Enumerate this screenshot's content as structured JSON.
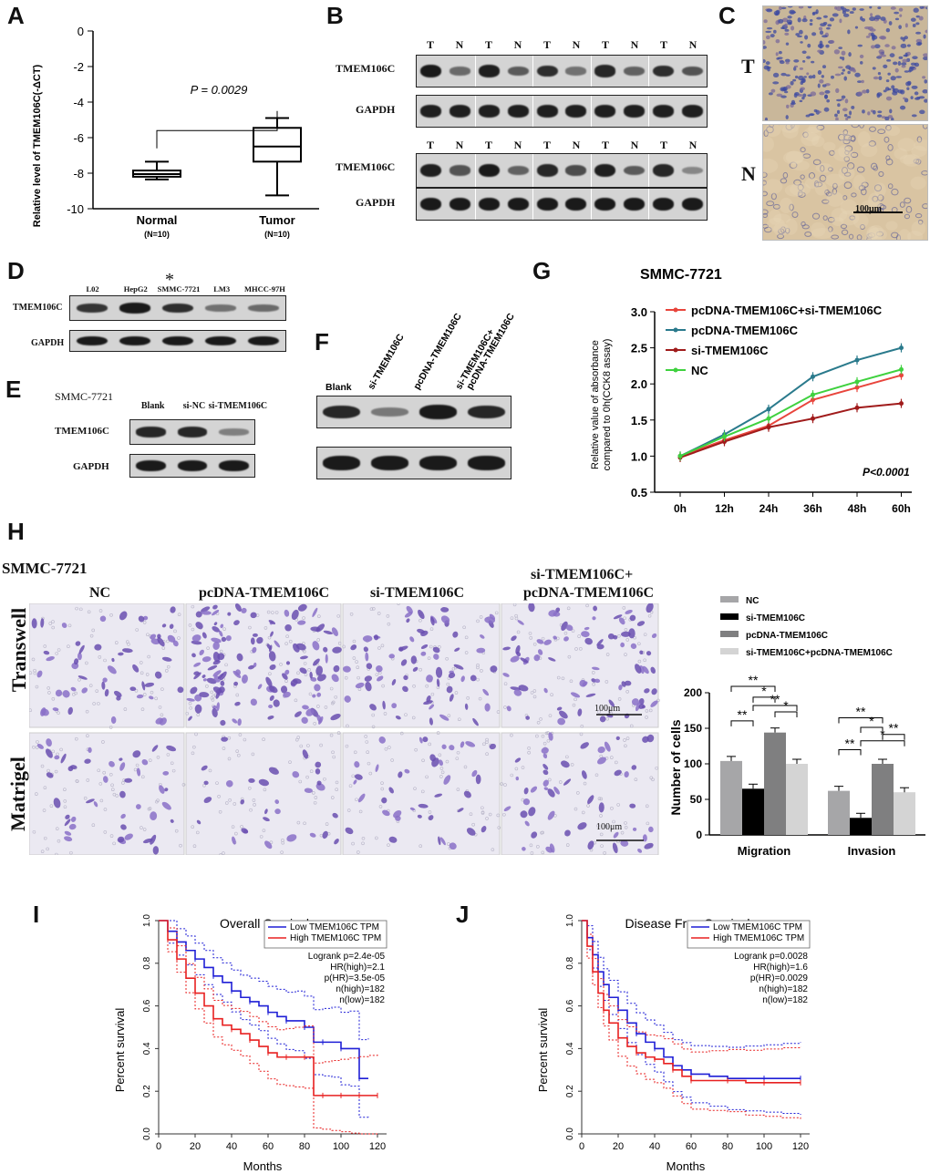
{
  "panels": {
    "A": "A",
    "B": "B",
    "C": "C",
    "D": "D",
    "E": "E",
    "F": "F",
    "G": "G",
    "H": "H",
    "I": "I",
    "J": "J"
  },
  "panelA": {
    "chart_data": {
      "type": "boxplot",
      "ylabel": "Relative level of TMEM106C(-ΔCT)",
      "ylim": [
        -10,
        0
      ],
      "yticks": [
        "0",
        "-2",
        "-4",
        "-6",
        "-8",
        "-10"
      ],
      "annotation": "P = 0.0029",
      "groups": [
        {
          "name": "Normal",
          "n": "(N=10)",
          "min": -8.35,
          "q1": -8.2,
          "median": -8.05,
          "q3": -7.85,
          "max": -7.35
        },
        {
          "name": "Tumor",
          "n": "(N=10)",
          "min": -9.25,
          "q1": -7.35,
          "median": -6.5,
          "q3": -5.45,
          "max": -4.9
        }
      ]
    }
  },
  "panelB": {
    "lanes": [
      "T",
      "N",
      "T",
      "N",
      "T",
      "N",
      "T",
      "N",
      "T",
      "N"
    ],
    "row1": "TMEM106C",
    "row2": "GAPDH",
    "row3": "TMEM106C",
    "row4": "GAPDH"
  },
  "panelC": {
    "t_label": "T",
    "n_label": "N",
    "scale": "100μm"
  },
  "panelD": {
    "lanes": [
      "L02",
      "HepG2",
      "SMMC-7721",
      "LM3",
      "MHCC-97H"
    ],
    "star": "*",
    "row1": "TMEM106C",
    "row2": "GAPDH"
  },
  "panelE": {
    "cell": "SMMC-7721",
    "lanes": [
      "Blank",
      "si-NC",
      "si-TMEM106C"
    ],
    "row1": "TMEM106C",
    "row2": "GAPDH"
  },
  "panelF": {
    "lanes": [
      "Blank",
      "si-TMEM106C",
      "pcDNA-TMEM106C",
      "si-TMEM106C+",
      "pcDNA-TMEM106C"
    ]
  },
  "panelG": {
    "chart_data": {
      "type": "line",
      "title": "SMMC-7721",
      "ylabel1": "Relative value of absorbance",
      "ylabel2": "compared to 0h(CCK8 assay)",
      "x": [
        "0h",
        "12h",
        "24h",
        "36h",
        "48h",
        "60h"
      ],
      "ylim": [
        0.5,
        3.0
      ],
      "yticks": [
        "0.5",
        "1.0",
        "1.5",
        "2.0",
        "2.5",
        "3.0"
      ],
      "pvalue": "P<0.0001",
      "series": [
        {
          "name": "pcDNA-TMEM106C+si-TMEM106C",
          "color": "#e8453c",
          "values": [
            1.0,
            1.22,
            1.42,
            1.78,
            1.95,
            2.12
          ]
        },
        {
          "name": "pcDNA-TMEM106C",
          "color": "#2a7a8c",
          "values": [
            1.0,
            1.3,
            1.65,
            2.1,
            2.33,
            2.5
          ]
        },
        {
          "name": "si-TMEM106C",
          "color": "#a01b1b",
          "values": [
            0.98,
            1.2,
            1.4,
            1.52,
            1.67,
            1.73
          ]
        },
        {
          "name": "NC",
          "color": "#3fd13f",
          "values": [
            1.0,
            1.27,
            1.52,
            1.85,
            2.03,
            2.2
          ]
        }
      ]
    }
  },
  "panelH": {
    "cell": "SMMC-7721",
    "cols": [
      "NC",
      "pcDNA-TMEM106C",
      "si-TMEM106C",
      "si-TMEM106C+",
      "pcDNA-TMEM106C"
    ],
    "rows": [
      "Transwell",
      "Matrigel"
    ],
    "scale": "100μm",
    "chart_data": {
      "type": "bar",
      "ylabel": "Number of cells",
      "ylim": [
        0,
        200
      ],
      "yticks": [
        "0",
        "50",
        "100",
        "150",
        "200"
      ],
      "categories": [
        "Migration",
        "Invasion"
      ],
      "series": [
        {
          "name": "NC",
          "color": "#a6a6a8",
          "values": [
            104,
            62
          ]
        },
        {
          "name": "si-TMEM106C",
          "color": "#000000",
          "values": [
            65,
            24
          ]
        },
        {
          "name": "pcDNA-TMEM106C",
          "color": "#7f7f80",
          "values": [
            144,
            100
          ]
        },
        {
          "name": "si-TMEM106C+pcDNA-TMEM106C",
          "color": "#d4d4d4",
          "values": [
            100,
            60
          ]
        }
      ],
      "sig": [
        "**",
        "*",
        "**",
        "*",
        "**",
        "**",
        "*",
        "**",
        "*",
        "**"
      ]
    }
  },
  "panelI": {
    "chart_data": {
      "type": "line",
      "title": "Overall Survival",
      "xlabel": "Months",
      "ylabel": "Percent survival",
      "xticks": [
        "0",
        "20",
        "40",
        "60",
        "80",
        "100",
        "120"
      ],
      "yticks": [
        "0.0",
        "0.2",
        "0.4",
        "0.6",
        "0.8",
        "1.0"
      ],
      "legend": [
        "Low TMEM106C TPM",
        "High TMEM106C TPM"
      ],
      "stats": [
        "Logrank p=2.4e-05",
        "HR(high)=2.1",
        "p(HR)=3.5e-05",
        "n(high)=182",
        "n(low)=182"
      ],
      "series": [
        {
          "name": "Low TMEM106C TPM",
          "color": "#1f1fd6",
          "x": [
            0,
            5,
            10,
            15,
            20,
            25,
            30,
            35,
            40,
            45,
            50,
            55,
            60,
            65,
            70,
            75,
            80,
            85,
            90,
            95,
            100,
            105,
            110,
            115
          ],
          "values": [
            1.0,
            0.95,
            0.9,
            0.86,
            0.82,
            0.78,
            0.74,
            0.71,
            0.67,
            0.64,
            0.62,
            0.6,
            0.57,
            0.55,
            0.53,
            0.53,
            0.5,
            0.43,
            0.43,
            0.43,
            0.4,
            0.4,
            0.26,
            0.26
          ]
        },
        {
          "name": "High TMEM106C TPM",
          "color": "#e82020",
          "x": [
            0,
            5,
            10,
            15,
            20,
            25,
            30,
            35,
            40,
            45,
            50,
            55,
            60,
            65,
            70,
            75,
            80,
            85,
            90,
            95,
            100,
            105,
            110,
            115,
            120
          ],
          "values": [
            1.0,
            0.91,
            0.82,
            0.73,
            0.66,
            0.6,
            0.54,
            0.51,
            0.49,
            0.47,
            0.44,
            0.41,
            0.38,
            0.36,
            0.36,
            0.36,
            0.36,
            0.18,
            0.18,
            0.18,
            0.18,
            0.18,
            0.18,
            0.18,
            0.18
          ]
        }
      ]
    }
  },
  "panelJ": {
    "chart_data": {
      "type": "line",
      "title": "Disease Free Survival",
      "xlabel": "Months",
      "ylabel": "Percent survival",
      "xticks": [
        "0",
        "20",
        "40",
        "60",
        "80",
        "100",
        "120"
      ],
      "yticks": [
        "0.0",
        "0.2",
        "0.4",
        "0.6",
        "0.8",
        "1.0"
      ],
      "legend": [
        "Low TMEM106C TPM",
        "High TMEM106C TPM"
      ],
      "stats": [
        "Logrank p=0.0028",
        "HR(high)=1.6",
        "p(HR)=0.0029",
        "n(high)=182",
        "n(low)=182"
      ],
      "series": [
        {
          "name": "Low TMEM106C TPM",
          "color": "#1f1fd6",
          "x": [
            0,
            3,
            6,
            9,
            12,
            15,
            20,
            25,
            30,
            35,
            40,
            45,
            50,
            55,
            60,
            70,
            80,
            90,
            100,
            110,
            120
          ],
          "values": [
            1.0,
            0.92,
            0.84,
            0.76,
            0.7,
            0.64,
            0.58,
            0.52,
            0.47,
            0.43,
            0.4,
            0.36,
            0.32,
            0.3,
            0.28,
            0.27,
            0.26,
            0.26,
            0.26,
            0.26,
            0.26
          ]
        },
        {
          "name": "High TMEM106C TPM",
          "color": "#e82020",
          "x": [
            0,
            3,
            6,
            9,
            12,
            15,
            20,
            25,
            30,
            35,
            40,
            45,
            50,
            55,
            60,
            70,
            80,
            90,
            100,
            110,
            120
          ],
          "values": [
            1.0,
            0.88,
            0.76,
            0.66,
            0.58,
            0.52,
            0.45,
            0.41,
            0.38,
            0.36,
            0.35,
            0.33,
            0.3,
            0.27,
            0.25,
            0.25,
            0.25,
            0.24,
            0.24,
            0.24,
            0.24
          ]
        }
      ]
    }
  }
}
